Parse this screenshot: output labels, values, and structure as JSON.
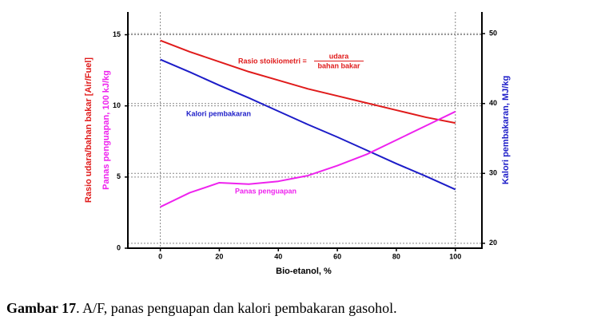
{
  "chart_data": {
    "type": "line",
    "x": [
      0,
      10,
      20,
      30,
      40,
      50,
      60,
      70,
      80,
      90,
      100
    ],
    "xlim": [
      -11,
      109
    ],
    "xticks": [
      0,
      20,
      40,
      60,
      80,
      100
    ],
    "ylim": [
      0,
      16.6
    ],
    "yticks": [
      0,
      5,
      10,
      15
    ],
    "y2lim": [
      19.3,
      53.1
    ],
    "y2ticks": [
      20,
      30,
      40,
      50
    ],
    "xlabel": "Bio-etanol, %",
    "ylabel": [
      "Rasio udara/bahan bakar [Air/Fuel]",
      "Panas penguapan, 100 kJ/kg"
    ],
    "y2label": "Kalori pembakaran, MJ/kg",
    "grid": true,
    "series": [
      {
        "color": "#e01b1b",
        "values": [
          14.6,
          13.8,
          13.1,
          12.4,
          11.8,
          11.2,
          10.7,
          10.2,
          9.7,
          9.2,
          8.8
        ]
      },
      {
        "name": "Kalori pembakaran",
        "color": "#1c1cc8",
        "axis": "y2",
        "values": [
          46.3,
          44.5,
          42.6,
          40.8,
          38.9,
          37.0,
          35.2,
          33.3,
          31.4,
          29.6,
          27.7
        ]
      },
      {
        "name": "Panas penguapan",
        "color": "#ee22ee",
        "values": [
          2.9,
          3.9,
          4.6,
          4.5,
          4.7,
          5.1,
          5.8,
          6.6,
          7.6,
          8.6,
          9.6
        ]
      }
    ],
    "annotation": {
      "text": "Rasio stoikiometri =",
      "numerator": "udara",
      "denominator": "bahan bakar"
    },
    "caption": {
      "label": "Gambar 17",
      "text": ". A/F, panas penguapan dan kalori pembakaran gasohol."
    }
  }
}
